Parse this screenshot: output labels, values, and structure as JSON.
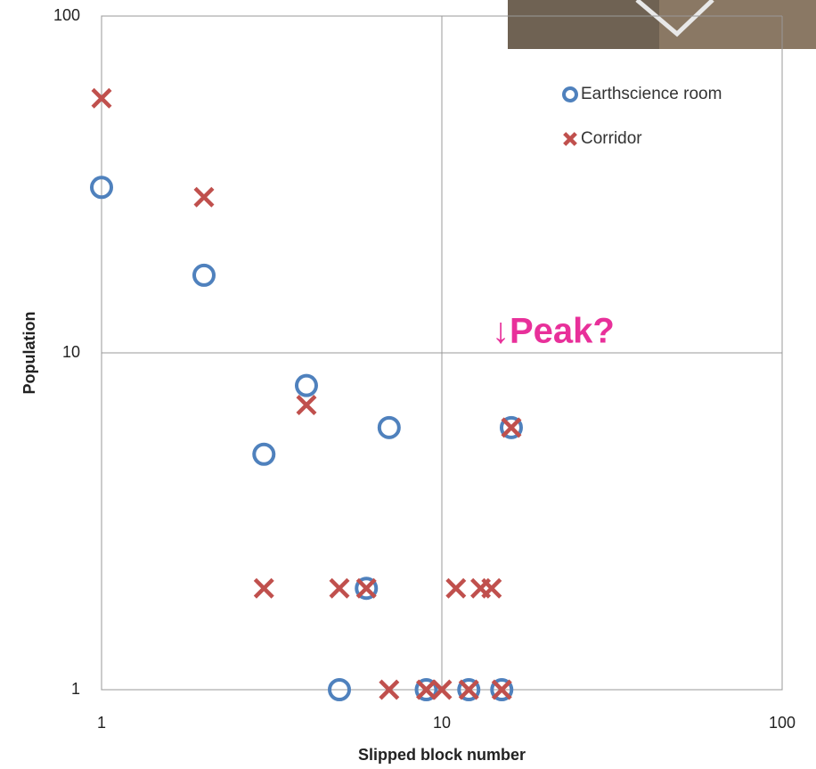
{
  "chart_data": {
    "type": "scatter",
    "x_label": "Slipped block number",
    "y_label": "Population",
    "xscale": "log",
    "yscale": "log",
    "xlim": [
      1,
      100
    ],
    "ylim": [
      1,
      100
    ],
    "xticks": [
      1,
      10,
      100
    ],
    "yticks": [
      1,
      10,
      100
    ],
    "grid": true,
    "legend": "upper right",
    "annotation": "↓Peak?",
    "series": [
      {
        "name": "Earthscience room",
        "color": "#4f81bd",
        "marker": "o",
        "x": [
          1,
          2,
          3,
          4,
          5,
          6,
          7,
          9,
          12,
          15,
          16
        ],
        "values": [
          31,
          17,
          5,
          8,
          1,
          2,
          6,
          1,
          1,
          1,
          6
        ]
      },
      {
        "name": "Corridor",
        "color": "#c0504d",
        "marker": "x",
        "x": [
          1,
          2,
          4,
          3,
          5,
          6,
          7,
          9,
          10,
          11,
          12,
          13,
          14,
          15,
          16
        ],
        "values": [
          57,
          29,
          7,
          2,
          2,
          2,
          1,
          1,
          1,
          2,
          1,
          2,
          2,
          1,
          6
        ]
      }
    ]
  }
}
